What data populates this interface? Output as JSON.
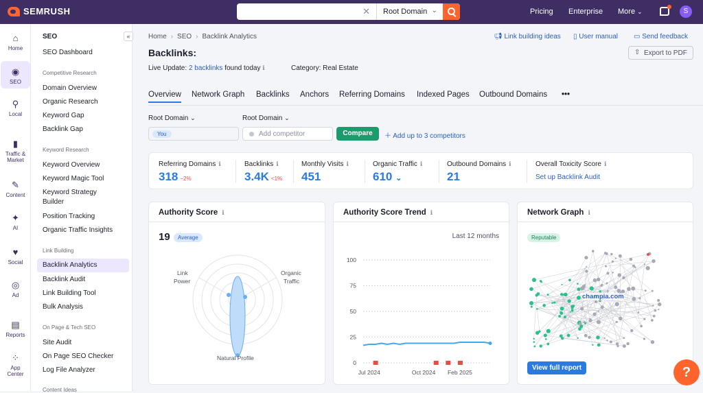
{
  "app": {
    "brand": "SEMRUSH"
  },
  "search": {
    "value": "",
    "scope": "Root Domain"
  },
  "topnav": [
    {
      "label": "Pricing"
    },
    {
      "label": "Enterprise"
    },
    {
      "label": "More"
    }
  ],
  "user": {
    "initial": "S"
  },
  "rail": [
    {
      "label": "Home",
      "icon": "⌂"
    },
    {
      "label": "SEO",
      "icon": "◉"
    },
    {
      "label": "Local",
      "icon": "⚲"
    },
    {
      "label": "Traffic &",
      "label2": "Market",
      "icon": "▮"
    },
    {
      "label": "Content",
      "icon": "✎"
    },
    {
      "label": "AI",
      "icon": "✦"
    },
    {
      "label": "Social",
      "icon": "♥"
    },
    {
      "label": "Ad",
      "icon": "◎"
    },
    {
      "label": "Reports",
      "icon": "▤"
    },
    {
      "label": "App",
      "label2": "Center",
      "icon": "⁘"
    }
  ],
  "menu": {
    "title": "SEO",
    "dashboard": "SEO Dashboard",
    "sections": [
      {
        "name": "Competitive Research",
        "items": [
          "Domain Overview",
          "Organic Research",
          "Keyword Gap",
          "Backlink Gap"
        ]
      },
      {
        "name": "Keyword Research",
        "items": [
          "Keyword Overview",
          "Keyword Magic Tool",
          "Keyword Strategy Builder",
          "Position Tracking",
          "Organic Traffic Insights"
        ]
      },
      {
        "name": "Link Building",
        "items": [
          "Backlink Analytics",
          "Backlink Audit",
          "Link Building Tool",
          "Bulk Analysis"
        ]
      },
      {
        "name": "On Page & Tech SEO",
        "items": [
          "Site Audit",
          "On Page SEO Checker",
          "Log File Analyzer"
        ]
      },
      {
        "name": "Content Ideas",
        "items": []
      }
    ]
  },
  "breadcrumb": [
    "Home",
    "SEO",
    "Backlink Analytics"
  ],
  "toplinks": [
    "Link building ideas",
    "User manual",
    "Send feedback"
  ],
  "page": {
    "title": "Backlinks:",
    "export": "Export to PDF",
    "live_prefix": "Live Update:",
    "live_link": "2 backlinks",
    "live_suffix": "found today",
    "category": "Category: Real Estate"
  },
  "tabs": [
    "Overview",
    "Network Graph",
    "Backlinks",
    "Anchors",
    "Referring Domains",
    "Indexed Pages",
    "Outbound Domains",
    "•••"
  ],
  "compare": {
    "dd1": "Root Domain",
    "dd2": "Root Domain",
    "you": "You",
    "placeholder": "Add competitor",
    "button": "Compare",
    "add": "Add up to 3 competitors"
  },
  "stats": [
    {
      "label": "Referring Domains",
      "value": "318",
      "delta": "−2%"
    },
    {
      "label": "Backlinks",
      "value": "3.4K",
      "delta": "<1%"
    },
    {
      "label": "Monthly Visits",
      "value": "451",
      "delta": ""
    },
    {
      "label": "Organic Traffic",
      "value": "610",
      "delta": ""
    },
    {
      "label": "Outbound Domains",
      "value": "21",
      "delta": ""
    },
    {
      "label": "Overall Toxicity Score",
      "link": "Set up Backlink Audit"
    }
  ],
  "authority": {
    "title": "Authority Score",
    "score": "19",
    "badge": "Average",
    "axes": [
      "Link",
      "Power",
      "Organic",
      "Traffic",
      "Natural Profile"
    ]
  },
  "trend": {
    "title": "Authority Score Trend",
    "period": "Last 12 months",
    "chart_data": {
      "type": "line",
      "title": "Authority Score Trend",
      "ylim": [
        0,
        100
      ],
      "yticks": [
        0,
        25,
        50,
        75,
        100
      ],
      "xticks": [
        "Jul 2024",
        "Oct 2024",
        "Feb 2025"
      ],
      "values": [
        17,
        18,
        18,
        19,
        18,
        19,
        18,
        19,
        19,
        19,
        19,
        19,
        19,
        19,
        19,
        19,
        20,
        20,
        20,
        20,
        20,
        19
      ],
      "markers": [
        2,
        12,
        14,
        16
      ]
    }
  },
  "network": {
    "title": "Network Graph",
    "badge": "Reputable",
    "center": "champia.com",
    "button": "View full report"
  },
  "help": "?"
}
